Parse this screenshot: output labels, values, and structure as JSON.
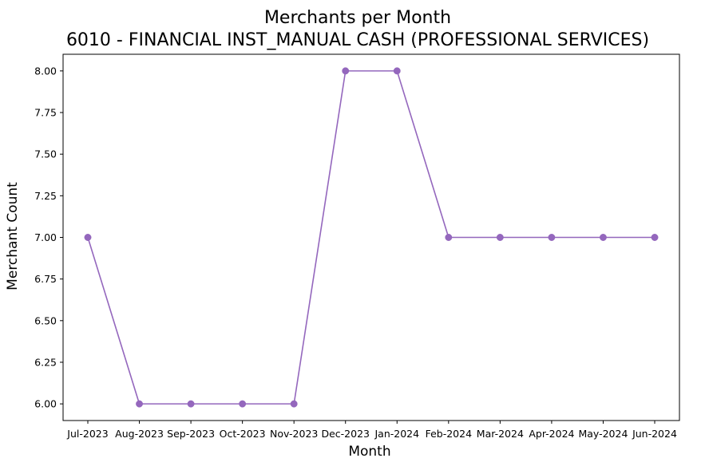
{
  "chart_data": {
    "type": "line",
    "title_line1": "Merchants per Month",
    "title_line2": "6010 - FINANCIAL INST_MANUAL CASH (PROFESSIONAL SERVICES)",
    "xlabel": "Month",
    "ylabel": "Merchant Count",
    "categories": [
      "Jul-2023",
      "Aug-2023",
      "Sep-2023",
      "Oct-2023",
      "Nov-2023",
      "Dec-2023",
      "Jan-2024",
      "Feb-2024",
      "Mar-2024",
      "Apr-2024",
      "May-2024",
      "Jun-2024"
    ],
    "series": [
      {
        "values": [
          7,
          6,
          6,
          6,
          6,
          8,
          8,
          7,
          7,
          7,
          7,
          7
        ],
        "color": "#9467bd",
        "marker": "circle"
      }
    ],
    "yticks": [
      "6.00",
      "6.25",
      "6.50",
      "6.75",
      "7.00",
      "7.25",
      "7.50",
      "7.75",
      "8.00"
    ],
    "ylim": [
      5.9,
      8.1
    ],
    "grid": false,
    "legend": "none"
  }
}
